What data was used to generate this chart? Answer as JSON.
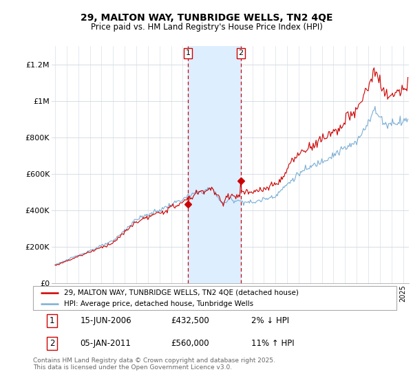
{
  "title": "29, MALTON WAY, TUNBRIDGE WELLS, TN2 4QE",
  "subtitle": "Price paid vs. HM Land Registry's House Price Index (HPI)",
  "legend_line1": "29, MALTON WAY, TUNBRIDGE WELLS, TN2 4QE (detached house)",
  "legend_line2": "HPI: Average price, detached house, Tunbridge Wells",
  "transaction1_date": "15-JUN-2006",
  "transaction1_price": 432500,
  "transaction1_hpi_diff": "2% ↓ HPI",
  "transaction1_year": 2006.46,
  "transaction2_date": "05-JAN-2011",
  "transaction2_price": 560000,
  "transaction2_hpi_diff": "11% ↑ HPI",
  "transaction2_year": 2011.02,
  "ylim": [
    0,
    1300000
  ],
  "xlim_start": 1994.7,
  "xlim_end": 2025.5,
  "property_color": "#cc0000",
  "hpi_color": "#7aaed6",
  "shade_color": "#ddeeff",
  "footer_text": "Contains HM Land Registry data © Crown copyright and database right 2025.\nThis data is licensed under the Open Government Licence v3.0.",
  "yticks": [
    0,
    200000,
    400000,
    600000,
    800000,
    1000000,
    1200000
  ],
  "ytick_labels": [
    "£0",
    "£200K",
    "£400K",
    "£600K",
    "£800K",
    "£1M",
    "£1.2M"
  ]
}
